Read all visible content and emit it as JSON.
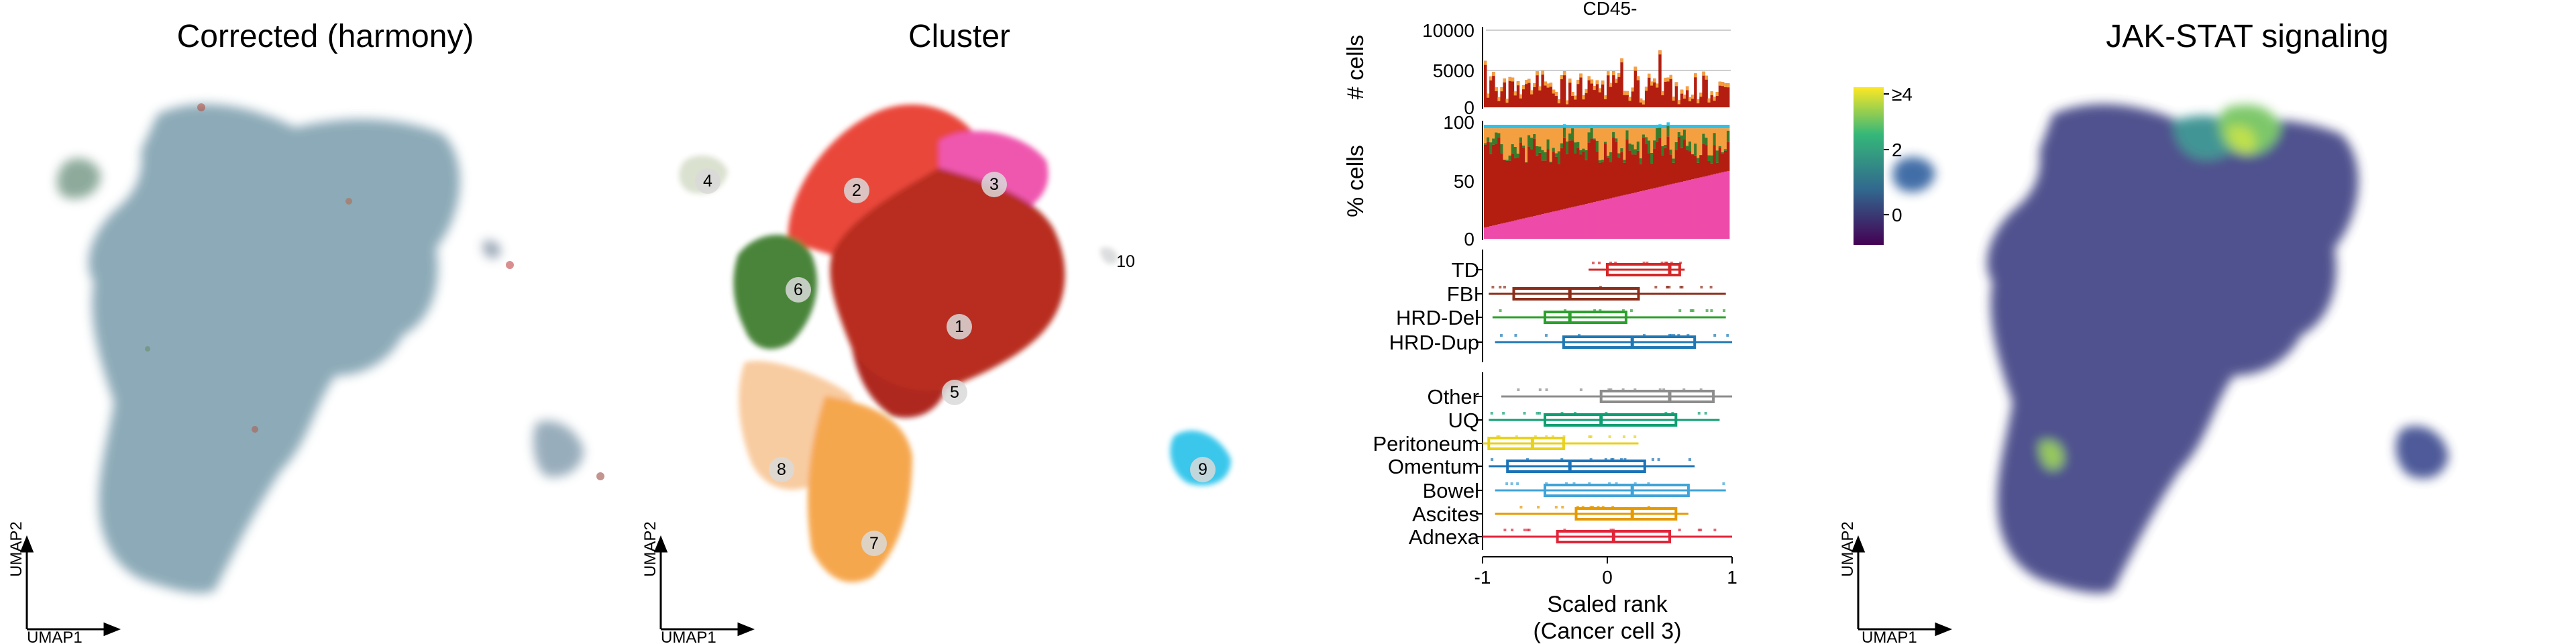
{
  "panels": {
    "corrected": {
      "title": "Corrected (harmony)",
      "x_axis": "UMAP1",
      "y_axis": "UMAP2"
    },
    "cluster": {
      "title": "Cluster",
      "x_axis": "UMAP1",
      "y_axis": "UMAP2"
    },
    "jak": {
      "title": "JAK-STAT signaling",
      "x_axis": "UMAP1",
      "y_axis": "UMAP2",
      "colorbar_ticks": [
        "≥4",
        "2",
        "0"
      ],
      "colors": [
        "#440154",
        "#31688e",
        "#35b779",
        "#fde725"
      ]
    }
  },
  "clusters": [
    {
      "id": "1",
      "color": "#b31e10"
    },
    {
      "id": "2",
      "color": "#e8392a"
    },
    {
      "id": "3",
      "color": "#ee4aa9"
    },
    {
      "id": "4",
      "color": "#d8dfcc"
    },
    {
      "id": "5",
      "color": "#a8170f"
    },
    {
      "id": "6",
      "color": "#3b7a2a"
    },
    {
      "id": "7",
      "color": "#f5a040"
    },
    {
      "id": "8",
      "color": "#f8c89a"
    },
    {
      "id": "9",
      "color": "#2cc3ea"
    },
    {
      "id": "10",
      "color": "#d9dadb"
    }
  ],
  "chart_data": {
    "type": "bar",
    "title": "CD45-",
    "counts_panel": {
      "ylabel": "# cells",
      "yticks": [
        "10000",
        "5000",
        "0"
      ],
      "ylim": [
        0,
        10000
      ]
    },
    "percent_panel": {
      "ylabel": "% cells",
      "yticks": [
        "100",
        "50",
        "0"
      ],
      "ylim": [
        0,
        100
      ]
    },
    "box_panel": {
      "xlabel": "Scaled rank",
      "xlabel2": "(Cancer cell 3)",
      "xticks": [
        "-1",
        "0",
        "1"
      ],
      "xlim": [
        -1,
        1
      ],
      "groups": [
        {
          "label": "TD",
          "color": "#d62728",
          "q1": 0.0,
          "median": 0.5,
          "q3": 0.58,
          "low": -0.15,
          "high": 0.62
        },
        {
          "label": "FBI",
          "color": "#8c2d19",
          "q1": -0.75,
          "median": -0.3,
          "q3": 0.25,
          "low": -0.95,
          "high": 0.95
        },
        {
          "label": "HRD-Del",
          "color": "#2ca02c",
          "q1": -0.5,
          "median": -0.3,
          "q3": 0.15,
          "low": -0.92,
          "high": 0.95
        },
        {
          "label": "HRD-Dup",
          "color": "#1f77b4",
          "q1": -0.35,
          "median": 0.2,
          "q3": 0.7,
          "low": -0.9,
          "high": 1.0
        },
        {
          "label": "Other",
          "color": "#8c8c8c",
          "q1": -0.05,
          "median": 0.5,
          "q3": 0.85,
          "low": -0.85,
          "high": 1.0
        },
        {
          "label": "UQ",
          "color": "#0f9e72",
          "q1": -0.5,
          "median": -0.05,
          "q3": 0.55,
          "low": -0.95,
          "high": 0.9
        },
        {
          "label": "Peritoneum",
          "color": "#e8d21a",
          "q1": -0.95,
          "median": -0.6,
          "q3": -0.35,
          "low": -1.0,
          "high": 0.25
        },
        {
          "label": "Omentum",
          "color": "#1a73b8",
          "q1": -0.8,
          "median": -0.3,
          "q3": 0.3,
          "low": -0.95,
          "high": 0.7
        },
        {
          "label": "Bowel",
          "color": "#3fa3d8",
          "q1": -0.5,
          "median": 0.2,
          "q3": 0.65,
          "low": -0.9,
          "high": 0.95
        },
        {
          "label": "Ascites",
          "color": "#e69a00",
          "q1": -0.25,
          "median": 0.2,
          "q3": 0.55,
          "low": -0.9,
          "high": 0.65
        },
        {
          "label": "Adnexa",
          "color": "#e0253a",
          "q1": -0.4,
          "median": 0.05,
          "q3": 0.5,
          "low": -1.0,
          "high": 1.0
        }
      ]
    }
  }
}
